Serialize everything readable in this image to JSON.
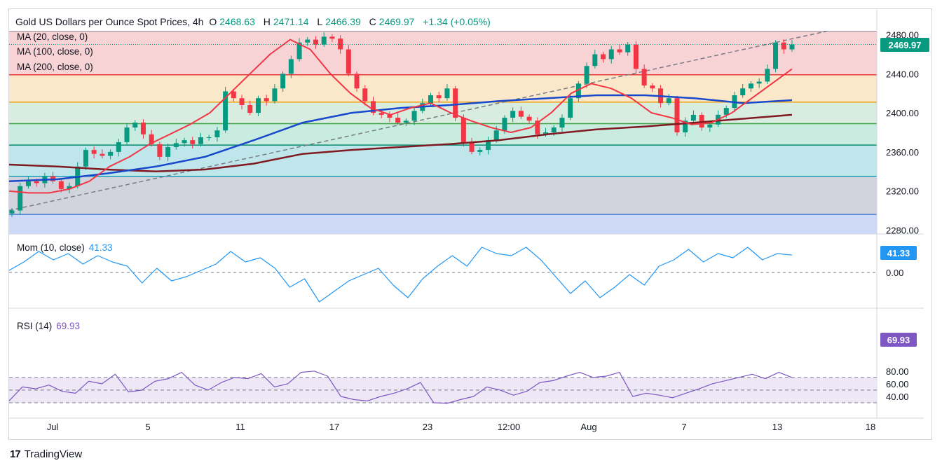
{
  "header": {
    "symbol": "Gold US Dollars per Ounce Spot Prices, 4h",
    "open_label": "O",
    "open": "2468.63",
    "high_label": "H",
    "high": "2471.14",
    "low_label": "L",
    "low": "2466.39",
    "close_label": "C",
    "close": "2469.97",
    "change": "+1.34 (+0.05%)"
  },
  "ma_labels": [
    "MA (20, close, 0)",
    "MA (100, close, 0)",
    "MA (200, close, 0)"
  ],
  "mom": {
    "label": "Mom (10, close)",
    "value": "41.33"
  },
  "rsi": {
    "label": "RSI (14)",
    "value": "69.93"
  },
  "price_tag": "2469.97",
  "brand": "TradingView",
  "colors": {
    "up": "#089981",
    "down": "#f23645",
    "ma20": "#f23645",
    "ma100": "#1848cc",
    "ma200": "#801922",
    "mom": "#2196f3",
    "rsi": "#7e57c2"
  },
  "chart_data": {
    "type": "candlestick",
    "title": "Gold US Dollars per Ounce Spot Prices, 4h",
    "timeframe": "4h",
    "x_tick_labels": [
      "Jul",
      "5",
      "11",
      "17",
      "23",
      "12:00",
      "Aug",
      "7",
      "13",
      "18"
    ],
    "price_axis": {
      "ticks": [
        2480,
        2440,
        2400,
        2360,
        2320,
        2280
      ],
      "ylim": [
        2276,
        2484
      ]
    },
    "fib_levels": [
      2296,
      2335,
      2367,
      2389,
      2411,
      2439,
      2484
    ],
    "trendline": {
      "from": 2300,
      "to": 2484
    },
    "price_path": [
      2300,
      2325,
      2330,
      2328,
      2335,
      2330,
      2322,
      2325,
      2345,
      2362,
      2358,
      2356,
      2360,
      2370,
      2385,
      2390,
      2378,
      2368,
      2355,
      2365,
      2369,
      2372,
      2368,
      2375,
      2375,
      2382,
      2422,
      2415,
      2408,
      2400,
      2415,
      2412,
      2425,
      2440,
      2455,
      2472,
      2475,
      2470,
      2478,
      2476,
      2465,
      2440,
      2425,
      2412,
      2400,
      2398,
      2395,
      2390,
      2392,
      2402,
      2410,
      2418,
      2415,
      2425,
      2395,
      2370,
      2360,
      2362,
      2372,
      2382,
      2395,
      2402,
      2396,
      2392,
      2378,
      2380,
      2385,
      2395,
      2415,
      2430,
      2448,
      2460,
      2455,
      2465,
      2462,
      2470,
      2445,
      2428,
      2425,
      2410,
      2415,
      2380,
      2392,
      2398,
      2385,
      2388,
      2398,
      2405,
      2418,
      2425,
      2430,
      2432,
      2445,
      2472,
      2465,
      2469.97
    ],
    "ma20_path": [
      2320,
      2318,
      2318,
      2322,
      2330,
      2345,
      2355,
      2368,
      2378,
      2388,
      2400,
      2420,
      2440,
      2460,
      2475,
      2465,
      2440,
      2420,
      2405,
      2398,
      2405,
      2410,
      2400,
      2392,
      2385,
      2380,
      2385,
      2400,
      2420,
      2430,
      2425,
      2415,
      2400,
      2395,
      2388,
      2390,
      2400,
      2415,
      2430,
      2445
    ],
    "ma100_path": [
      2330,
      2332,
      2338,
      2345,
      2355,
      2372,
      2390,
      2400,
      2405,
      2408,
      2412,
      2415,
      2418,
      2418,
      2415,
      2410,
      2413
    ],
    "ma200_path": [
      2347,
      2345,
      2342,
      2340,
      2342,
      2348,
      2358,
      2362,
      2365,
      2368,
      2372,
      2378,
      2383,
      2386,
      2390,
      2394,
      2398
    ],
    "momentum": {
      "current": 41.33,
      "axis_ticks": [
        0.0
      ],
      "series": [
        5,
        25,
        50,
        30,
        45,
        20,
        40,
        25,
        15,
        -25,
        10,
        -20,
        -10,
        5,
        20,
        50,
        25,
        35,
        10,
        -35,
        -15,
        -70,
        -45,
        -20,
        -5,
        10,
        -30,
        -60,
        -15,
        15,
        40,
        15,
        60,
        45,
        40,
        60,
        30,
        -10,
        -50,
        -20,
        -60,
        -35,
        -5,
        -30,
        15,
        30,
        55,
        25,
        45,
        35,
        60,
        30,
        45,
        41.33
      ]
    },
    "rsi_series": {
      "current": 69.93,
      "axis_ticks": [
        80,
        60,
        40
      ],
      "levels": [
        70,
        50,
        30
      ],
      "values": [
        33,
        55,
        52,
        58,
        48,
        45,
        64,
        60,
        75,
        47,
        50,
        64,
        68,
        78,
        58,
        50,
        62,
        70,
        68,
        76,
        55,
        60,
        78,
        80,
        72,
        40,
        35,
        33,
        40,
        45,
        52,
        62,
        30,
        29,
        35,
        40,
        55,
        50,
        42,
        48,
        62,
        65,
        72,
        78,
        70,
        72,
        78,
        40,
        45,
        42,
        38,
        45,
        52,
        60,
        65,
        70,
        75,
        68,
        78,
        69.93
      ]
    }
  }
}
